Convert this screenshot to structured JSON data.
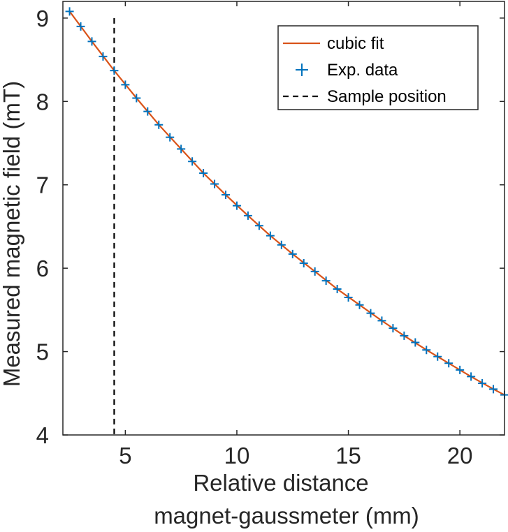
{
  "chart_data": {
    "type": "line",
    "title": "",
    "xlabel_lines": [
      "Relative distance",
      "magnet-gaussmeter (mm)"
    ],
    "ylabel": "Measured magnetic field (mT)",
    "xlim": [
      2.2,
      22
    ],
    "ylim": [
      4,
      9.2
    ],
    "xticks": [
      5,
      10,
      15,
      20
    ],
    "yticks": [
      4,
      5,
      6,
      7,
      8,
      9
    ],
    "grid": false,
    "legend_position": "top-right",
    "sample_position": 4.5,
    "series": [
      {
        "name": "cubic fit",
        "kind": "line",
        "color": "#d95319",
        "x": [
          2.5,
          3.5,
          4.5,
          5.5,
          6.5,
          7.5,
          8.5,
          9.5,
          10.5,
          11.5,
          12.5,
          13.5,
          14.5,
          15.5,
          16.5,
          17.5,
          18.5,
          19.5,
          20.5,
          21.5,
          22.0
        ],
        "y": [
          9.08,
          8.72,
          8.37,
          8.04,
          7.72,
          7.43,
          7.14,
          6.88,
          6.63,
          6.39,
          6.17,
          5.96,
          5.75,
          5.56,
          5.37,
          5.19,
          5.02,
          4.86,
          4.7,
          4.55,
          4.48
        ]
      },
      {
        "name": "Exp. data",
        "kind": "marker",
        "color": "#0072bd",
        "x": [
          2.5,
          3.0,
          3.5,
          4.0,
          4.5,
          5.0,
          5.5,
          6.0,
          6.5,
          7.0,
          7.5,
          8.0,
          8.5,
          9.0,
          9.5,
          10.0,
          10.5,
          11.0,
          11.5,
          12.0,
          12.5,
          13.0,
          13.5,
          14.0,
          14.5,
          15.0,
          15.5,
          16.0,
          16.5,
          17.0,
          17.5,
          18.0,
          18.5,
          19.0,
          19.5,
          20.0,
          20.5,
          21.0,
          21.5,
          22.0
        ],
        "y": [
          9.08,
          8.9,
          8.72,
          8.54,
          8.37,
          8.2,
          8.04,
          7.88,
          7.72,
          7.57,
          7.43,
          7.28,
          7.14,
          7.01,
          6.88,
          6.75,
          6.63,
          6.51,
          6.39,
          6.28,
          6.17,
          6.06,
          5.96,
          5.85,
          5.75,
          5.65,
          5.56,
          5.46,
          5.37,
          5.28,
          5.19,
          5.11,
          5.02,
          4.94,
          4.86,
          4.78,
          4.7,
          4.62,
          4.55,
          4.48
        ]
      },
      {
        "name": "Sample position",
        "kind": "dashed-vertical",
        "color": "#000000"
      }
    ]
  }
}
